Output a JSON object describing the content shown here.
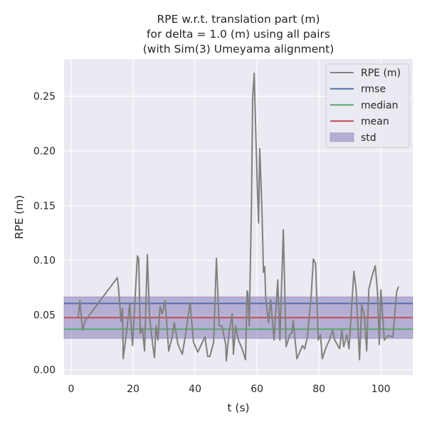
{
  "chart_data": {
    "type": "line",
    "title": [
      "RPE w.r.t. translation part (m)",
      "for delta = 1.0 (m) using all pairs",
      "(with Sim(3) Umeyama alignment)"
    ],
    "xlabel": "t (s)",
    "ylabel": "RPE (m)",
    "xlim": [
      -2.3,
      110.3
    ],
    "ylim": [
      -0.005,
      0.284
    ],
    "xticks": [
      0,
      20,
      40,
      60,
      80,
      100
    ],
    "yticks": [
      0.0,
      0.05,
      0.1,
      0.15,
      0.2,
      0.25
    ],
    "xtick_labels": [
      "0",
      "20",
      "40",
      "60",
      "80",
      "100"
    ],
    "ytick_labels": [
      "0.00",
      "0.05",
      "0.10",
      "0.15",
      "0.20",
      "0.25"
    ],
    "grid": true,
    "legend_position": "top-right",
    "colors": {
      "background": "#eaeaf2",
      "rpe": "#808080",
      "rmse": "#4c72b0",
      "median": "#55a868",
      "mean": "#c44e52",
      "std": "#8172b2"
    },
    "series": [
      {
        "name": "RPE (m)",
        "x": [
          2.3,
          2.8,
          3.7,
          4.6,
          14.9,
          15.2,
          16.1,
          16.6,
          16.8,
          17.7,
          18.9,
          19.8,
          20.7,
          21.4,
          21.8,
          22.3,
          23.0,
          23.7,
          24.6,
          25.3,
          26.4,
          26.9,
          27.4,
          28.0,
          28.7,
          29.4,
          30.3,
          31.5,
          32.6,
          33.3,
          34.5,
          35.9,
          36.8,
          38.4,
          39.5,
          40.9,
          43.2,
          44.1,
          44.8,
          46.0,
          46.9,
          47.8,
          48.7,
          49.9,
          50.1,
          51.0,
          52.0,
          52.4,
          53.1,
          54.0,
          55.2,
          56.3,
          56.8,
          57.0,
          57.5,
          58.2,
          58.6,
          59.1,
          59.3,
          60.2,
          60.5,
          60.9,
          61.6,
          62.1,
          62.5,
          62.8,
          63.7,
          64.4,
          65.5,
          66.7,
          67.4,
          68.5,
          69.4,
          70.6,
          71.3,
          71.7,
          72.9,
          74.7,
          75.4,
          76.3,
          77.5,
          78.2,
          78.9,
          79.8,
          80.5,
          81.1,
          82.1,
          83.4,
          84.4,
          85.1,
          86.7,
          87.4,
          88.0,
          89.0,
          89.7,
          91.3,
          92.0,
          93.1,
          93.8,
          94.7,
          95.4,
          96.1,
          97.0,
          98.2,
          98.9,
          99.5,
          100.0,
          101.1,
          102.3,
          103.9,
          105.1,
          105.7
        ],
        "y": [
          0.048,
          0.063,
          0.036,
          0.045,
          0.084,
          0.077,
          0.044,
          0.056,
          0.01,
          0.03,
          0.06,
          0.022,
          0.069,
          0.104,
          0.101,
          0.033,
          0.038,
          0.017,
          0.105,
          0.049,
          0.021,
          0.011,
          0.04,
          0.027,
          0.058,
          0.051,
          0.063,
          0.017,
          0.03,
          0.043,
          0.023,
          0.014,
          0.03,
          0.061,
          0.025,
          0.016,
          0.03,
          0.012,
          0.012,
          0.025,
          0.102,
          0.04,
          0.04,
          0.023,
          0.008,
          0.034,
          0.051,
          0.014,
          0.04,
          0.027,
          0.019,
          0.009,
          0.072,
          0.071,
          0.04,
          0.149,
          0.248,
          0.271,
          0.247,
          0.158,
          0.134,
          0.202,
          0.145,
          0.089,
          0.094,
          0.066,
          0.043,
          0.064,
          0.027,
          0.082,
          0.027,
          0.128,
          0.021,
          0.032,
          0.034,
          0.045,
          0.01,
          0.022,
          0.019,
          0.03,
          0.068,
          0.101,
          0.097,
          0.027,
          0.032,
          0.01,
          0.019,
          0.027,
          0.036,
          0.027,
          0.019,
          0.036,
          0.021,
          0.032,
          0.019,
          0.09,
          0.073,
          0.009,
          0.059,
          0.049,
          0.017,
          0.073,
          0.084,
          0.095,
          0.071,
          0.023,
          0.073,
          0.027,
          0.031,
          0.03,
          0.071,
          0.076
        ]
      }
    ],
    "stats": {
      "rmse": 0.0605,
      "median": 0.037,
      "mean": 0.0475,
      "std": 0.019
    },
    "legend": [
      "RPE (m)",
      "rmse",
      "median",
      "mean",
      "std"
    ]
  }
}
